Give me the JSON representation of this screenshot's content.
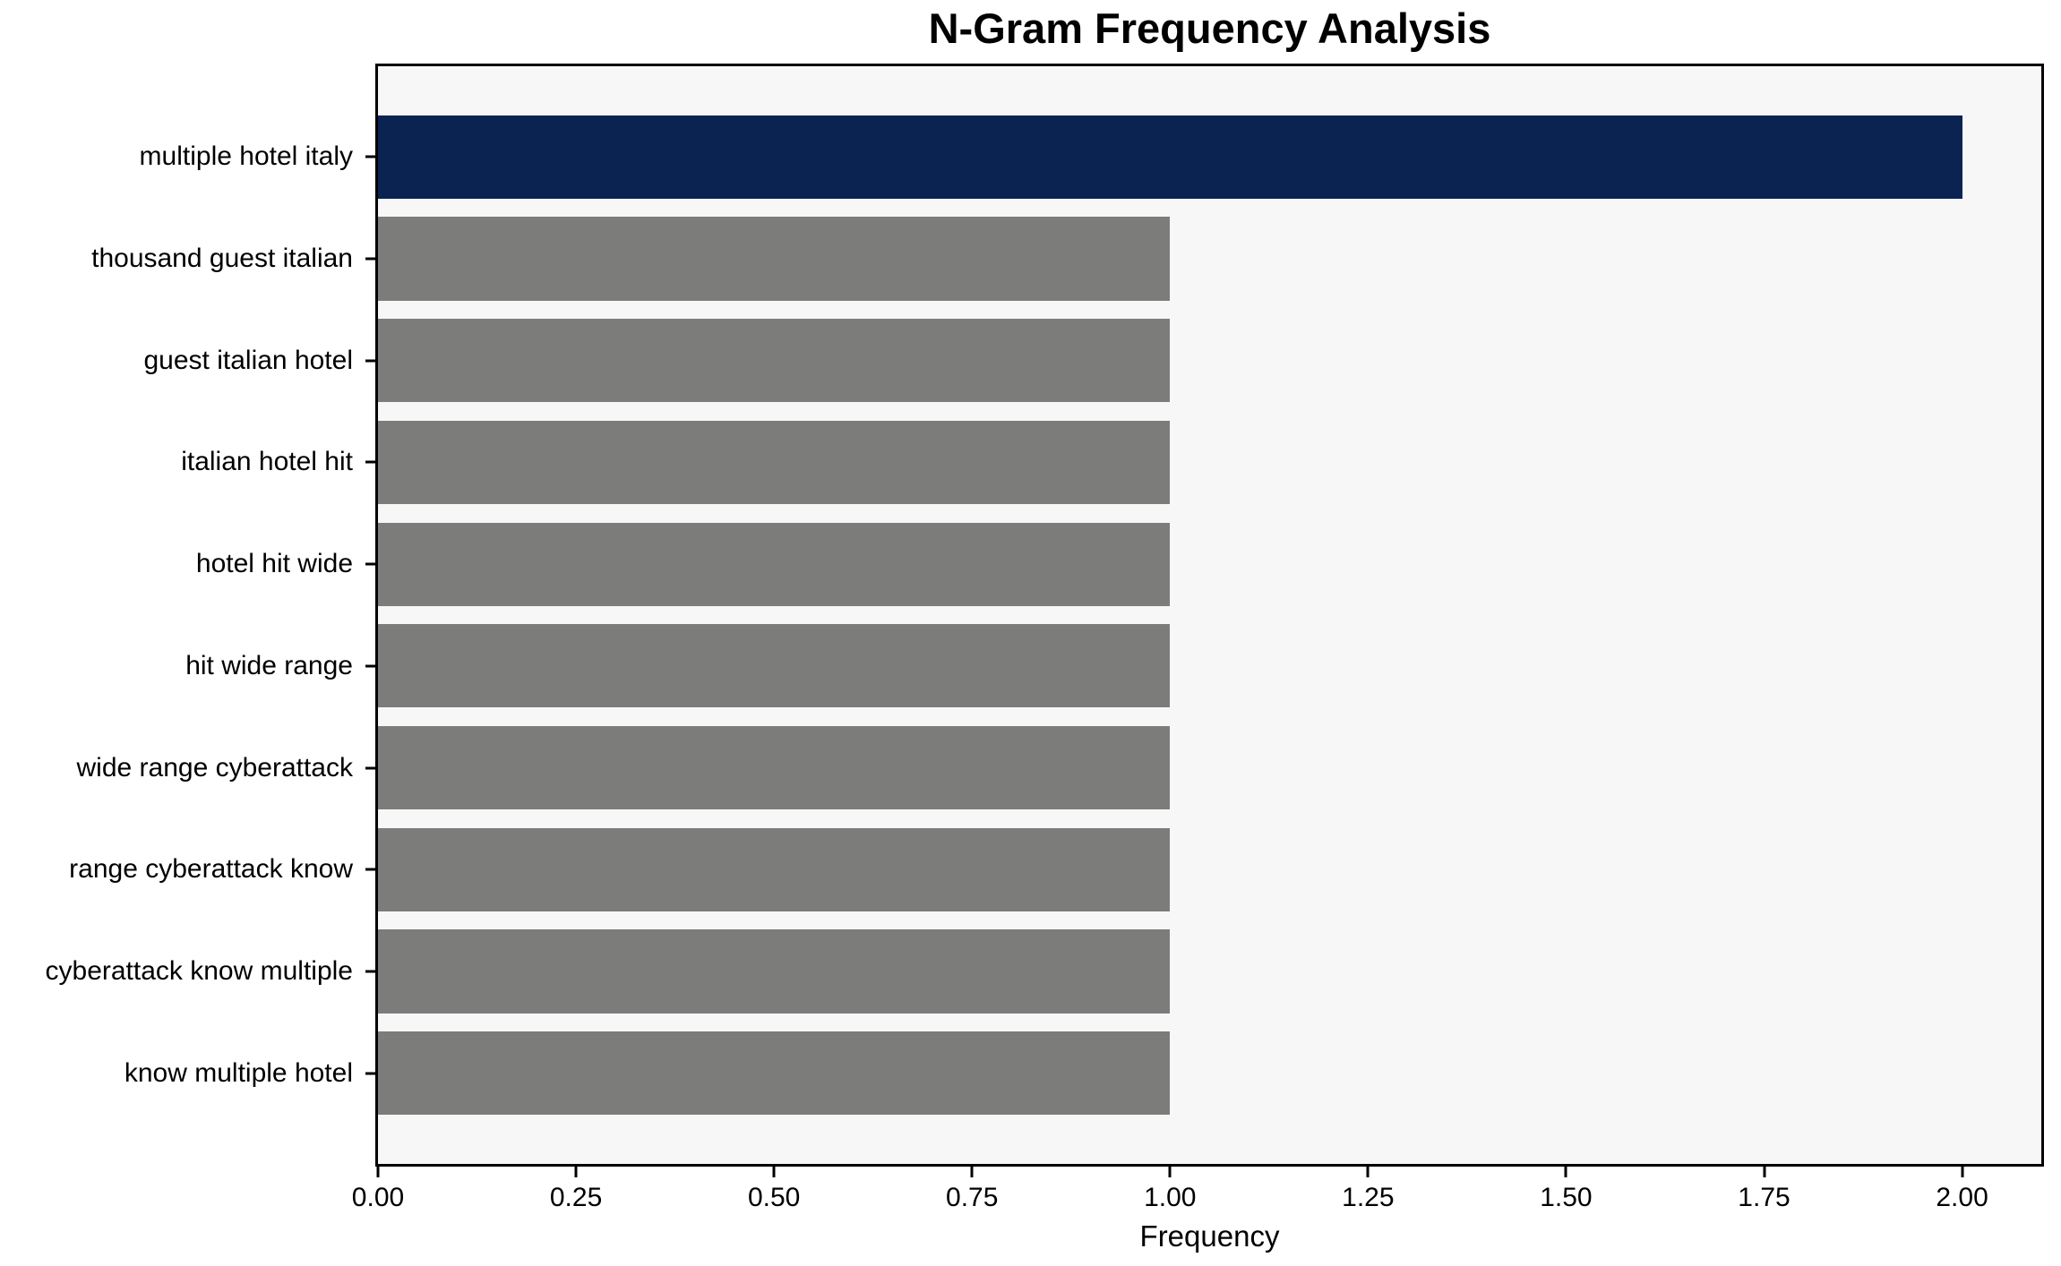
{
  "chart_data": {
    "type": "bar",
    "orientation": "horizontal",
    "title": "N-Gram Frequency Analysis",
    "xlabel": "Frequency",
    "ylabel": "",
    "categories": [
      "multiple hotel italy",
      "thousand guest italian",
      "guest italian hotel",
      "italian hotel hit",
      "hotel hit wide",
      "hit wide range",
      "wide range cyberattack",
      "range cyberattack know",
      "cyberattack know multiple",
      "know multiple hotel"
    ],
    "values": [
      2,
      1,
      1,
      1,
      1,
      1,
      1,
      1,
      1,
      1
    ],
    "xlim": [
      0,
      2.1
    ],
    "x_ticks": [
      0,
      0.25,
      0.5,
      0.75,
      1.0,
      1.25,
      1.5,
      1.75,
      2.0
    ],
    "x_tick_labels": [
      "0.00",
      "0.25",
      "0.50",
      "0.75",
      "1.00",
      "1.25",
      "1.50",
      "1.75",
      "2.00"
    ],
    "grid": false,
    "legend": "none",
    "bar_colors": [
      "#0a2351",
      "#7c7c7a",
      "#7c7c7a",
      "#7c7c7a",
      "#7c7c7a",
      "#7c7c7a",
      "#7c7c7a",
      "#7c7c7a",
      "#7c7c7a",
      "#7c7c7a"
    ],
    "highlight_color": "#0a2351",
    "default_bar_color": "#7c7c7a",
    "plot_bg_color": "#f7f7f7",
    "figure_bg_color": "#ffffff",
    "axis_color": "#000000",
    "text_color": "#000000"
  }
}
